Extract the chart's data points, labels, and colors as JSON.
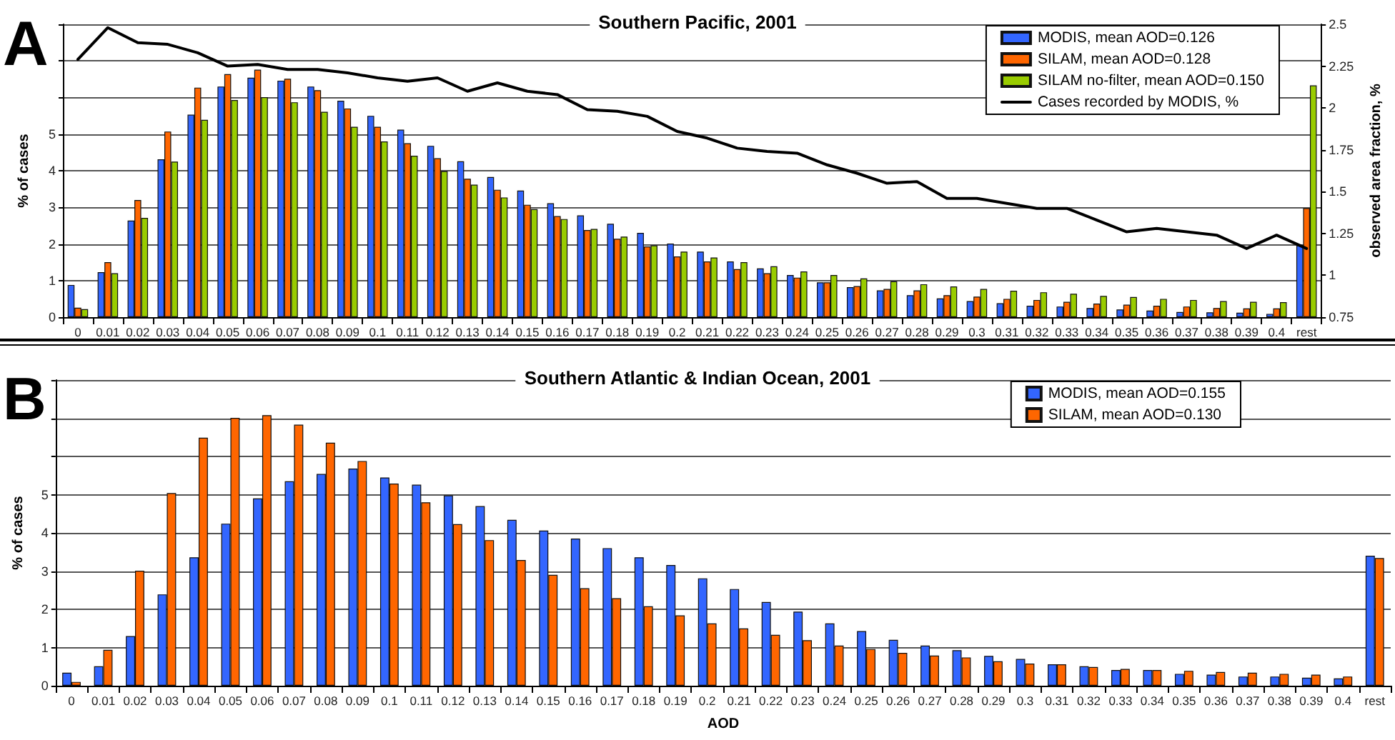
{
  "chart_data": [
    {
      "type": "bar",
      "title": "Southern Pacific, 2001",
      "ylabel": "% of cases",
      "y2label": "observed area fraction, %",
      "annotations": [
        "A"
      ],
      "categories": [
        "0",
        "0.01",
        "0.02",
        "0.03",
        "0.04",
        "0.05",
        "0.06",
        "0.07",
        "0.08",
        "0.09",
        "0.1",
        "0.11",
        "0.12",
        "0.13",
        "0.14",
        "0.15",
        "0.16",
        "0.17",
        "0.18",
        "0.19",
        "0.2",
        "0.21",
        "0.22",
        "0.23",
        "0.24",
        "0.25",
        "0.26",
        "0.27",
        "0.28",
        "0.29",
        "0.3",
        "0.31",
        "0.32",
        "0.33",
        "0.34",
        "0.35",
        "0.36",
        "0.37",
        "0.38",
        "0.39",
        "0.4",
        "rest"
      ],
      "series": [
        {
          "name": "MODIS, mean AOD=0.126",
          "color": "#3366ff",
          "values": [
            0.88,
            1.23,
            2.64,
            4.31,
            5.53,
            6.3,
            6.54,
            6.46,
            6.3,
            5.91,
            5.5,
            5.12,
            4.68,
            4.26,
            3.83,
            3.46,
            3.11,
            2.78,
            2.55,
            2.3,
            2.01,
            1.79,
            1.52,
            1.33,
            1.15,
            0.95,
            0.82,
            0.73,
            0.6,
            0.51,
            0.44,
            0.38,
            0.31,
            0.29,
            0.25,
            0.21,
            0.18,
            0.14,
            0.13,
            0.12,
            0.09,
            1.96
          ]
        },
        {
          "name": "SILAM, mean AOD=0.128",
          "color": "#ff6600",
          "values": [
            0.26,
            1.5,
            3.2,
            5.07,
            6.27,
            6.64,
            6.76,
            6.51,
            6.2,
            5.7,
            5.2,
            4.75,
            4.34,
            3.78,
            3.48,
            3.07,
            2.76,
            2.38,
            2.14,
            1.93,
            1.66,
            1.52,
            1.31,
            1.2,
            1.08,
            0.95,
            0.85,
            0.77,
            0.73,
            0.6,
            0.56,
            0.5,
            0.47,
            0.42,
            0.37,
            0.34,
            0.31,
            0.29,
            0.25,
            0.24,
            0.24,
            2.98
          ]
        },
        {
          "name": "SILAM no-filter, mean AOD=0.150",
          "color": "#99cc00",
          "values": [
            0.22,
            1.2,
            2.71,
            4.25,
            5.39,
            5.93,
            6.01,
            5.87,
            5.61,
            5.2,
            4.8,
            4.41,
            3.99,
            3.62,
            3.27,
            2.95,
            2.68,
            2.41,
            2.2,
            1.96,
            1.79,
            1.63,
            1.5,
            1.39,
            1.25,
            1.15,
            1.06,
            0.98,
            0.9,
            0.84,
            0.77,
            0.72,
            0.68,
            0.64,
            0.58,
            0.55,
            0.5,
            0.47,
            0.44,
            0.42,
            0.41,
            6.33
          ]
        },
        {
          "name": "Cases recorded by MODIS, %",
          "type": "line",
          "axis": "y2",
          "color": "#000000",
          "values": [
            2.29,
            2.48,
            2.39,
            2.38,
            2.33,
            2.25,
            2.26,
            2.23,
            2.23,
            2.21,
            2.18,
            2.16,
            2.18,
            2.1,
            2.15,
            2.1,
            2.08,
            1.99,
            1.98,
            1.95,
            1.86,
            1.82,
            1.76,
            1.74,
            1.73,
            1.66,
            1.61,
            1.55,
            1.56,
            1.46,
            1.46,
            1.43,
            1.4,
            1.4,
            1.33,
            1.26,
            1.28,
            1.26,
            1.24,
            1.16,
            1.24,
            1.16
          ]
        }
      ],
      "ylim": [
        0,
        8
      ],
      "yticks": [
        0,
        1,
        2,
        3,
        4,
        5,
        {
          "value": 6,
          "label": null
        },
        {
          "value": 7,
          "label": null
        },
        {
          "value": 8,
          "label": null
        }
      ],
      "y2lim": [
        0.75,
        2.5
      ],
      "y2ticks": [
        0.75,
        1,
        1.25,
        1.5,
        1.75,
        2,
        2.25,
        2.5
      ],
      "grid": "y",
      "legend": "top right"
    },
    {
      "type": "bar",
      "title": "Southern Atlantic & Indian Ocean, 2001",
      "xlabel": "AOD",
      "ylabel": "% of cases",
      "annotations": [
        "B"
      ],
      "categories": [
        "0",
        "0.01",
        "0.02",
        "0.03",
        "0.04",
        "0.05",
        "0.06",
        "0.07",
        "0.08",
        "0.09",
        "0.1",
        "0.11",
        "0.12",
        "0.13",
        "0.14",
        "0.15",
        "0.16",
        "0.17",
        "0.18",
        "0.19",
        "0.2",
        "0.21",
        "0.22",
        "0.23",
        "0.24",
        "0.25",
        "0.26",
        "0.27",
        "0.28",
        "0.29",
        "0.3",
        "0.31",
        "0.32",
        "0.33",
        "0.34",
        "0.35",
        "0.36",
        "0.37",
        "0.38",
        "0.39",
        "0.4",
        "rest"
      ],
      "series": [
        {
          "name": "MODIS, mean AOD=0.155",
          "color": "#3366ff",
          "values": [
            0.34,
            0.51,
            1.3,
            2.39,
            3.36,
            4.24,
            4.9,
            5.35,
            5.54,
            5.68,
            5.45,
            5.26,
            4.98,
            4.7,
            4.34,
            4.06,
            3.85,
            3.6,
            3.36,
            3.16,
            2.81,
            2.53,
            2.19,
            1.94,
            1.63,
            1.43,
            1.2,
            1.05,
            0.93,
            0.78,
            0.7,
            0.56,
            0.51,
            0.41,
            0.41,
            0.31,
            0.29,
            0.24,
            0.24,
            0.21,
            0.19,
            3.4
          ]
        },
        {
          "name": "SILAM, mean AOD=0.130",
          "color": "#ff6600",
          "values": [
            0.1,
            0.94,
            3.01,
            5.04,
            6.49,
            7.01,
            7.08,
            6.83,
            6.36,
            5.88,
            5.29,
            4.8,
            4.23,
            3.81,
            3.29,
            2.9,
            2.55,
            2.29,
            2.08,
            1.84,
            1.63,
            1.5,
            1.33,
            1.19,
            1.05,
            0.96,
            0.86,
            0.79,
            0.74,
            0.64,
            0.58,
            0.56,
            0.49,
            0.44,
            0.41,
            0.39,
            0.36,
            0.34,
            0.31,
            0.29,
            0.24,
            3.34
          ]
        }
      ],
      "ylim": [
        0,
        8
      ],
      "yticks": [
        0,
        1,
        2,
        3,
        4,
        5,
        {
          "value": 6,
          "label": null
        },
        {
          "value": 7,
          "label": null
        },
        {
          "value": 8,
          "label": null
        }
      ],
      "grid": "y",
      "legend": "top right"
    }
  ]
}
